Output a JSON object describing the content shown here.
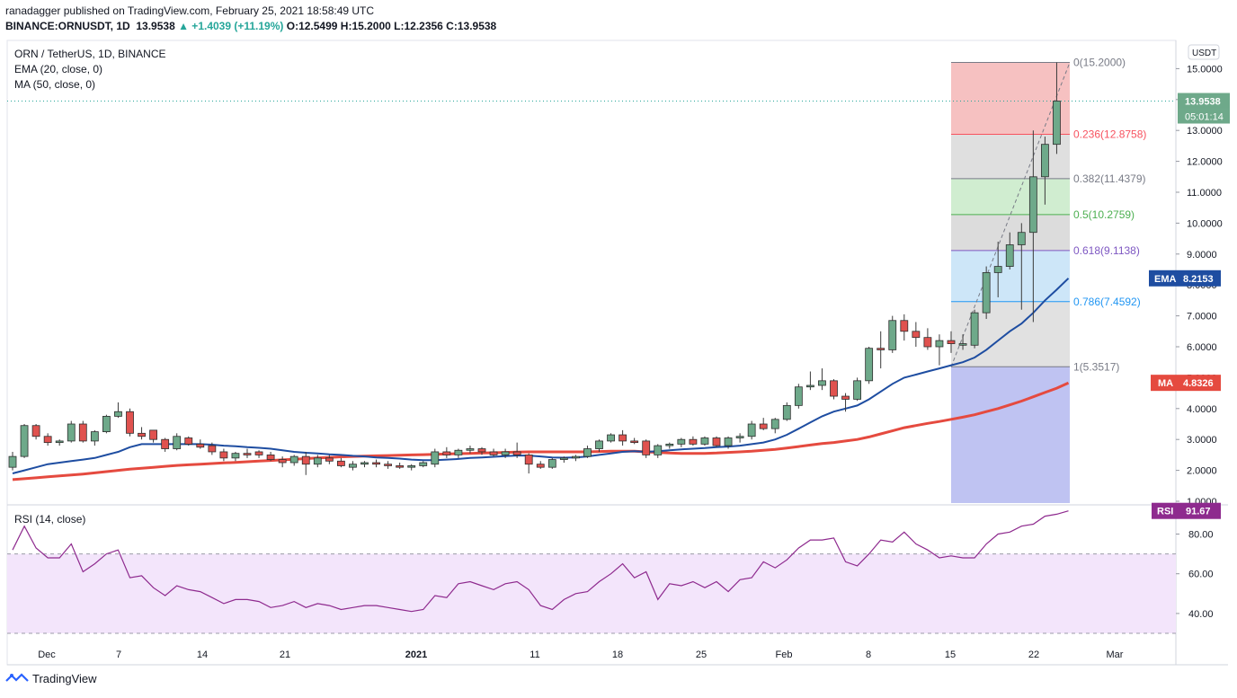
{
  "header": {
    "published_line": "ranadagger published on TradingView.com, February 25, 2021 18:58:49 UTC",
    "symbol": "BINANCE:ORNUSDT, 1D",
    "last": "13.9538",
    "change": "▲ +1.4039 (+11.19%)",
    "ohlc": "O:12.5499 H:15.2000 L:12.2356 C:13.9538"
  },
  "legend": {
    "pair": "ORN / TetherUS, 1D, BINANCE",
    "ema": "EMA (20, close, 0)",
    "ma": "MA (50, close, 0)",
    "rsi": "RSI (14, close)"
  },
  "axis": {
    "currency": "USDT",
    "price_ticks": [
      "1.0000",
      "2.0000",
      "3.0000",
      "4.0000",
      "5.0000",
      "6.0000",
      "7.0000",
      "8.0000",
      "9.0000",
      "10.0000",
      "11.0000",
      "12.0000",
      "13.0000",
      "14.0000",
      "15.0000"
    ],
    "rsi_ticks": [
      "40.00",
      "60.00",
      "80.00"
    ],
    "x_ticks": [
      "Dec",
      "7",
      "14",
      "21",
      "2021",
      "11",
      "18",
      "25",
      "Feb",
      "8",
      "15",
      "22",
      "Mar"
    ]
  },
  "badges": {
    "price": "13.9538",
    "countdown": "05:01:14",
    "ema_label": "EMA",
    "ema_value": "8.2153",
    "ma_label": "MA",
    "ma_value": "4.8326",
    "rsi_label": "RSI",
    "rsi_value": "91.67"
  },
  "fib": {
    "levels": [
      {
        "ratio": 0,
        "price": 15.2,
        "label": "0(15.2000)",
        "color": "#787b86"
      },
      {
        "ratio": 0.236,
        "price": 12.8758,
        "label": "0.236(12.8758)",
        "color": "#f7525f"
      },
      {
        "ratio": 0.382,
        "price": 11.4379,
        "label": "0.382(11.4379)",
        "color": "#787b86"
      },
      {
        "ratio": 0.5,
        "price": 10.2759,
        "label": "0.5(10.2759)",
        "color": "#4caf50"
      },
      {
        "ratio": 0.618,
        "price": 9.1138,
        "label": "0.618(9.1138)",
        "color": "#7e57c2"
      },
      {
        "ratio": 0.786,
        "price": 7.4592,
        "label": "0.786(7.4592)",
        "color": "#2196f3"
      },
      {
        "ratio": 1,
        "price": 5.3517,
        "label": "1(5.3517)",
        "color": "#787b86"
      }
    ],
    "zone_colors": [
      "#f4b6b6",
      "#d9d9d9",
      "#c8eac8",
      "#d6d6d6",
      "#c4e2f7",
      "#dcdcdc",
      "#b4b8f0"
    ]
  },
  "colors": {
    "up": "#6ea98a",
    "down": "#e0524f",
    "ema": "#1e4da1",
    "ma": "#e54a3f",
    "rsi": "#8e2a8e",
    "rsi_band": "#f3e5fb"
  },
  "footer": {
    "brand": "TradingView"
  },
  "chart_data": {
    "type": "candlestick",
    "title": "ORN / TetherUS, 1D, BINANCE",
    "ylim": [
      1,
      15.2
    ],
    "candles": [
      {
        "o": 2.1,
        "h": 2.6,
        "l": 2.0,
        "c": 2.45
      },
      {
        "o": 2.45,
        "h": 3.5,
        "l": 2.4,
        "c": 3.45
      },
      {
        "o": 3.45,
        "h": 3.5,
        "l": 3.0,
        "c": 3.1
      },
      {
        "o": 3.1,
        "h": 3.2,
        "l": 2.8,
        "c": 2.9
      },
      {
        "o": 2.9,
        "h": 3.0,
        "l": 2.8,
        "c": 2.95
      },
      {
        "o": 2.95,
        "h": 3.6,
        "l": 2.9,
        "c": 3.5
      },
      {
        "o": 3.5,
        "h": 3.6,
        "l": 2.9,
        "c": 2.95
      },
      {
        "o": 2.95,
        "h": 3.3,
        "l": 2.8,
        "c": 3.25
      },
      {
        "o": 3.25,
        "h": 3.8,
        "l": 3.2,
        "c": 3.75
      },
      {
        "o": 3.75,
        "h": 4.2,
        "l": 3.7,
        "c": 3.9
      },
      {
        "o": 3.9,
        "h": 4.0,
        "l": 3.1,
        "c": 3.2
      },
      {
        "o": 3.2,
        "h": 3.4,
        "l": 3.0,
        "c": 3.1
      },
      {
        "o": 3.3,
        "h": 3.3,
        "l": 2.9,
        "c": 3.0
      },
      {
        "o": 3.0,
        "h": 3.05,
        "l": 2.6,
        "c": 2.7
      },
      {
        "o": 2.7,
        "h": 3.2,
        "l": 2.65,
        "c": 3.1
      },
      {
        "o": 3.05,
        "h": 3.1,
        "l": 2.8,
        "c": 2.85
      },
      {
        "o": 2.85,
        "h": 3.0,
        "l": 2.7,
        "c": 2.75
      },
      {
        "o": 2.8,
        "h": 2.9,
        "l": 2.5,
        "c": 2.6
      },
      {
        "o": 2.6,
        "h": 2.7,
        "l": 2.3,
        "c": 2.4
      },
      {
        "o": 2.4,
        "h": 2.6,
        "l": 2.3,
        "c": 2.55
      },
      {
        "o": 2.55,
        "h": 2.7,
        "l": 2.4,
        "c": 2.5
      },
      {
        "o": 2.6,
        "h": 2.65,
        "l": 2.4,
        "c": 2.5
      },
      {
        "o": 2.5,
        "h": 2.6,
        "l": 2.3,
        "c": 2.35
      },
      {
        "o": 2.35,
        "h": 2.45,
        "l": 2.1,
        "c": 2.25
      },
      {
        "o": 2.25,
        "h": 2.5,
        "l": 2.15,
        "c": 2.45
      },
      {
        "o": 2.45,
        "h": 2.6,
        "l": 1.85,
        "c": 2.2
      },
      {
        "o": 2.2,
        "h": 2.5,
        "l": 2.1,
        "c": 2.4
      },
      {
        "o": 2.4,
        "h": 2.5,
        "l": 2.2,
        "c": 2.3
      },
      {
        "o": 2.3,
        "h": 2.4,
        "l": 2.1,
        "c": 2.15
      },
      {
        "o": 2.1,
        "h": 2.3,
        "l": 2.0,
        "c": 2.2
      },
      {
        "o": 2.2,
        "h": 2.3,
        "l": 2.1,
        "c": 2.25
      },
      {
        "o": 2.25,
        "h": 2.35,
        "l": 2.1,
        "c": 2.2
      },
      {
        "o": 2.2,
        "h": 2.3,
        "l": 2.05,
        "c": 2.15
      },
      {
        "o": 2.15,
        "h": 2.25,
        "l": 2.05,
        "c": 2.1
      },
      {
        "o": 2.1,
        "h": 2.2,
        "l": 2.0,
        "c": 2.15
      },
      {
        "o": 2.15,
        "h": 2.3,
        "l": 2.1,
        "c": 2.25
      },
      {
        "o": 2.2,
        "h": 2.7,
        "l": 2.1,
        "c": 2.6
      },
      {
        "o": 2.6,
        "h": 2.75,
        "l": 2.4,
        "c": 2.5
      },
      {
        "o": 2.5,
        "h": 2.7,
        "l": 2.4,
        "c": 2.65
      },
      {
        "o": 2.65,
        "h": 2.8,
        "l": 2.55,
        "c": 2.7
      },
      {
        "o": 2.7,
        "h": 2.75,
        "l": 2.5,
        "c": 2.6
      },
      {
        "o": 2.6,
        "h": 2.7,
        "l": 2.45,
        "c": 2.5
      },
      {
        "o": 2.5,
        "h": 2.7,
        "l": 2.4,
        "c": 2.6
      },
      {
        "o": 2.6,
        "h": 2.9,
        "l": 2.4,
        "c": 2.5
      },
      {
        "o": 2.5,
        "h": 2.55,
        "l": 1.9,
        "c": 2.2
      },
      {
        "o": 2.2,
        "h": 2.3,
        "l": 2.05,
        "c": 2.1
      },
      {
        "o": 2.1,
        "h": 2.4,
        "l": 2.05,
        "c": 2.35
      },
      {
        "o": 2.35,
        "h": 2.45,
        "l": 2.25,
        "c": 2.4
      },
      {
        "o": 2.4,
        "h": 2.5,
        "l": 2.3,
        "c": 2.45
      },
      {
        "o": 2.45,
        "h": 2.8,
        "l": 2.4,
        "c": 2.7
      },
      {
        "o": 2.7,
        "h": 3.0,
        "l": 2.6,
        "c": 2.95
      },
      {
        "o": 2.95,
        "h": 3.2,
        "l": 2.9,
        "c": 3.15
      },
      {
        "o": 3.15,
        "h": 3.3,
        "l": 2.8,
        "c": 2.95
      },
      {
        "o": 2.95,
        "h": 3.05,
        "l": 2.85,
        "c": 2.9
      },
      {
        "o": 2.95,
        "h": 3.0,
        "l": 2.4,
        "c": 2.5
      },
      {
        "o": 2.5,
        "h": 2.85,
        "l": 2.4,
        "c": 2.8
      },
      {
        "o": 2.8,
        "h": 2.9,
        "l": 2.7,
        "c": 2.85
      },
      {
        "o": 2.85,
        "h": 3.05,
        "l": 2.75,
        "c": 3.0
      },
      {
        "o": 3.0,
        "h": 3.1,
        "l": 2.8,
        "c": 2.85
      },
      {
        "o": 2.85,
        "h": 3.1,
        "l": 2.8,
        "c": 3.05
      },
      {
        "o": 3.05,
        "h": 3.1,
        "l": 2.75,
        "c": 2.8
      },
      {
        "o": 2.8,
        "h": 3.1,
        "l": 2.7,
        "c": 3.05
      },
      {
        "o": 3.05,
        "h": 3.2,
        "l": 2.9,
        "c": 3.1
      },
      {
        "o": 3.1,
        "h": 3.6,
        "l": 3.0,
        "c": 3.5
      },
      {
        "o": 3.5,
        "h": 3.7,
        "l": 3.3,
        "c": 3.35
      },
      {
        "o": 3.35,
        "h": 3.7,
        "l": 3.2,
        "c": 3.65
      },
      {
        "o": 3.65,
        "h": 4.2,
        "l": 3.6,
        "c": 4.1
      },
      {
        "o": 4.1,
        "h": 4.8,
        "l": 4.0,
        "c": 4.7
      },
      {
        "o": 4.7,
        "h": 5.2,
        "l": 4.6,
        "c": 4.75
      },
      {
        "o": 4.75,
        "h": 5.3,
        "l": 4.6,
        "c": 4.9
      },
      {
        "o": 4.9,
        "h": 4.95,
        "l": 4.3,
        "c": 4.4
      },
      {
        "o": 4.4,
        "h": 4.5,
        "l": 3.9,
        "c": 4.3
      },
      {
        "o": 4.3,
        "h": 5.0,
        "l": 4.25,
        "c": 4.9
      },
      {
        "o": 4.9,
        "h": 6.0,
        "l": 4.8,
        "c": 5.95
      },
      {
        "o": 5.95,
        "h": 6.5,
        "l": 5.3,
        "c": 5.9
      },
      {
        "o": 5.9,
        "h": 7.0,
        "l": 5.8,
        "c": 6.85
      },
      {
        "o": 6.85,
        "h": 7.05,
        "l": 6.2,
        "c": 6.5
      },
      {
        "o": 6.5,
        "h": 6.8,
        "l": 6.0,
        "c": 6.3
      },
      {
        "o": 6.3,
        "h": 6.6,
        "l": 5.9,
        "c": 6.0
      },
      {
        "o": 6.0,
        "h": 6.4,
        "l": 5.4,
        "c": 6.2
      },
      {
        "o": 6.2,
        "h": 6.5,
        "l": 5.8,
        "c": 6.1
      },
      {
        "o": 6.05,
        "h": 6.4,
        "l": 5.9,
        "c": 6.1
      },
      {
        "o": 6.05,
        "h": 7.2,
        "l": 5.95,
        "c": 7.1
      },
      {
        "o": 7.1,
        "h": 8.6,
        "l": 6.9,
        "c": 8.4
      },
      {
        "o": 8.4,
        "h": 9.4,
        "l": 7.6,
        "c": 8.6
      },
      {
        "o": 8.6,
        "h": 9.7,
        "l": 8.5,
        "c": 9.3
      },
      {
        "o": 9.3,
        "h": 10.0,
        "l": 7.2,
        "c": 9.7
      },
      {
        "o": 9.7,
        "h": 13.0,
        "l": 6.8,
        "c": 11.5
      },
      {
        "o": 11.5,
        "h": 12.8,
        "l": 10.6,
        "c": 12.55
      },
      {
        "o": 12.55,
        "h": 15.2,
        "l": 12.24,
        "c": 13.95
      }
    ],
    "ema20": [
      1.9,
      2.0,
      2.1,
      2.2,
      2.25,
      2.3,
      2.35,
      2.4,
      2.5,
      2.6,
      2.75,
      2.85,
      2.85,
      2.85,
      2.85,
      2.85,
      2.85,
      2.83,
      2.8,
      2.78,
      2.75,
      2.73,
      2.7,
      2.65,
      2.6,
      2.57,
      2.55,
      2.52,
      2.5,
      2.47,
      2.45,
      2.42,
      2.4,
      2.38,
      2.35,
      2.33,
      2.33,
      2.35,
      2.37,
      2.4,
      2.42,
      2.44,
      2.46,
      2.48,
      2.48,
      2.45,
      2.42,
      2.41,
      2.42,
      2.45,
      2.5,
      2.55,
      2.6,
      2.62,
      2.6,
      2.62,
      2.65,
      2.68,
      2.7,
      2.72,
      2.75,
      2.77,
      2.8,
      2.85,
      2.9,
      3.0,
      3.15,
      3.35,
      3.55,
      3.75,
      3.9,
      4.0,
      4.1,
      4.3,
      4.55,
      4.8,
      5.0,
      5.1,
      5.2,
      5.3,
      5.4,
      5.5,
      5.65,
      5.9,
      6.2,
      6.5,
      6.75,
      7.1,
      7.5,
      7.85,
      8.2153
    ],
    "ma50": [
      1.7,
      1.73,
      1.76,
      1.79,
      1.82,
      1.85,
      1.88,
      1.92,
      1.96,
      2.0,
      2.04,
      2.07,
      2.1,
      2.13,
      2.16,
      2.18,
      2.2,
      2.22,
      2.24,
      2.26,
      2.28,
      2.3,
      2.32,
      2.34,
      2.36,
      2.38,
      2.4,
      2.42,
      2.44,
      2.45,
      2.46,
      2.47,
      2.48,
      2.49,
      2.5,
      2.51,
      2.52,
      2.53,
      2.54,
      2.55,
      2.56,
      2.57,
      2.58,
      2.59,
      2.6,
      2.6,
      2.6,
      2.6,
      2.6,
      2.6,
      2.61,
      2.62,
      2.62,
      2.62,
      2.6,
      2.58,
      2.56,
      2.55,
      2.55,
      2.55,
      2.56,
      2.58,
      2.6,
      2.62,
      2.65,
      2.68,
      2.72,
      2.77,
      2.82,
      2.87,
      2.9,
      2.95,
      3.0,
      3.08,
      3.18,
      3.28,
      3.38,
      3.45,
      3.52,
      3.58,
      3.65,
      3.72,
      3.8,
      3.9,
      4.0,
      4.12,
      4.24,
      4.38,
      4.52,
      4.66,
      4.8326
    ],
    "rsi": [
      72,
      84,
      73,
      68,
      68,
      75,
      61,
      65,
      70,
      72,
      58,
      59,
      53,
      49,
      54,
      52,
      51,
      48,
      45,
      47,
      47,
      46,
      43,
      44,
      46,
      43,
      45,
      44,
      42,
      43,
      44,
      44,
      43,
      42,
      41,
      42,
      49,
      48,
      55,
      56,
      54,
      52,
      55,
      56,
      52,
      44,
      42,
      47,
      50,
      51,
      56,
      60,
      65,
      58,
      61,
      47,
      55,
      54,
      56,
      53,
      56,
      51,
      57,
      58,
      66,
      63,
      67,
      73,
      77,
      77,
      78,
      66,
      64,
      70,
      77,
      76,
      81,
      75,
      72,
      68,
      69,
      68,
      68,
      75,
      80,
      81,
      84,
      85,
      89,
      90,
      91.67
    ]
  }
}
